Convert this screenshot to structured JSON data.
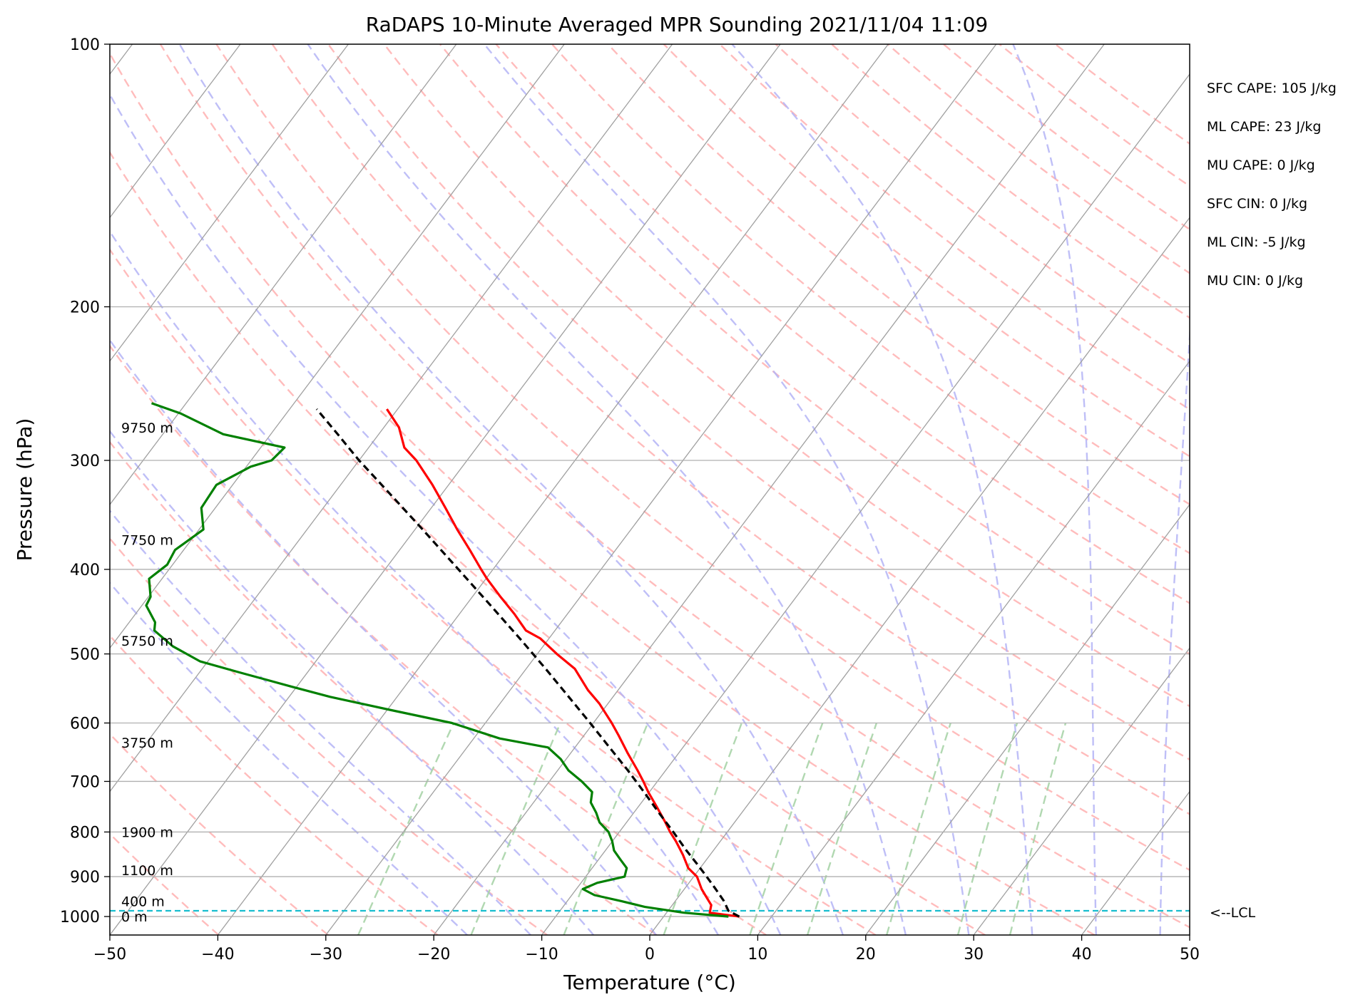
{
  "chart_data": {
    "type": "line",
    "title": "RaDAPS 10-Minute Averaged MPR Sounding 2021/11/04 11:09",
    "xlabel": "Temperature (°C)",
    "ylabel": "Pressure (hPa)",
    "xlim": [
      -50,
      50
    ],
    "ylim": [
      1050,
      100
    ],
    "y_scale": "log",
    "skew": "skew-T log-p",
    "grid": true,
    "x_ticks": [
      "−50",
      "−40",
      "−30",
      "−20",
      "−10",
      "0",
      "10",
      "20",
      "30",
      "40",
      "50"
    ],
    "y_ticks": [
      "100",
      "200",
      "300",
      "400",
      "500",
      "600",
      "700",
      "800",
      "900",
      "1000"
    ],
    "series": [
      {
        "role": "temperature",
        "color": "#ff0000",
        "pressure": [
          1000,
          990,
          970,
          950,
          930,
          900,
          880,
          850,
          820,
          800,
          780,
          750,
          720,
          700,
          680,
          650,
          620,
          600,
          570,
          550,
          520,
          500,
          480,
          470,
          450,
          430,
          410,
          400,
          380,
          360,
          340,
          320,
          300,
          290,
          275,
          262
        ],
        "temp": [
          7,
          4,
          3.6,
          2.6,
          1.6,
          0.3,
          -1.1,
          -2.5,
          -4.1,
          -5.3,
          -6.4,
          -8.2,
          -10.1,
          -11.3,
          -12.6,
          -14.7,
          -16.8,
          -18.3,
          -20.8,
          -22.8,
          -25.5,
          -28.2,
          -30.8,
          -32.7,
          -34.9,
          -37.4,
          -39.9,
          -41.1,
          -43.5,
          -46.1,
          -48.7,
          -51.5,
          -54.7,
          -56.7,
          -58.6,
          -61
        ]
      },
      {
        "role": "dewpoint",
        "color": "#008000",
        "pressure": [
          1000,
          990,
          975,
          960,
          945,
          930,
          915,
          900,
          880,
          860,
          840,
          820,
          800,
          780,
          760,
          740,
          720,
          700,
          680,
          660,
          640,
          625,
          600,
          580,
          560,
          545,
          525,
          510,
          490,
          470,
          460,
          440,
          430,
          410,
          395,
          380,
          360,
          340,
          320,
          305,
          300,
          290,
          280,
          265,
          258
        ],
        "temp": [
          6,
          1.6,
          -2.4,
          -5,
          -7.9,
          -9.4,
          -8.5,
          -6.4,
          -6.8,
          -8,
          -9.2,
          -10,
          -11,
          -12.5,
          -13.5,
          -14.7,
          -15.3,
          -17,
          -19,
          -20.5,
          -22.5,
          -27.6,
          -33.1,
          -39.6,
          -46.2,
          -50.5,
          -56.3,
          -60.7,
          -64.3,
          -67.1,
          -67.6,
          -69.6,
          -69.8,
          -71.2,
          -70.5,
          -70.8,
          -69.6,
          -71.3,
          -71.5,
          -69.6,
          -68.1,
          -67.8,
          -74.4,
          -79.8,
          -83.2
        ]
      },
      {
        "role": "parcel",
        "color": "#000000",
        "pressure": [
          1000,
          985,
          960,
          930,
          900,
          870,
          840,
          800,
          760,
          720,
          680,
          640,
          600,
          560,
          520,
          480,
          440,
          400,
          360,
          320,
          300,
          280,
          262
        ],
        "temp": [
          7,
          5.6,
          4.5,
          2.9,
          1.2,
          -0.6,
          -2.5,
          -5,
          -7.7,
          -10.5,
          -13.5,
          -16.8,
          -20.3,
          -24.1,
          -28.2,
          -32.7,
          -37.7,
          -43.2,
          -49.3,
          -56.2,
          -60,
          -63.8,
          -67.5
        ]
      }
    ],
    "lcl_pressure": 985,
    "lcl_label": "<--LCL",
    "height_labels": [
      {
        "text": "9750 m",
        "pressure": 275
      },
      {
        "text": "7750 m",
        "pressure": 370
      },
      {
        "text": "5750 m",
        "pressure": 483
      },
      {
        "text": "3750 m",
        "pressure": 632
      },
      {
        "text": "1900 m",
        "pressure": 800
      },
      {
        "text": "1100 m",
        "pressure": 885
      },
      {
        "text": "400 m",
        "pressure": 960
      },
      {
        "text": "0 m",
        "pressure": 1000
      }
    ],
    "indices": [
      "SFC CAPE: 105 J/kg",
      "ML CAPE: 23 J/kg",
      "MU CAPE: 0 J/kg",
      "SFC CIN: 0 J/kg",
      "ML CIN: -5 J/kg",
      "MU CIN: 0 J/kg"
    ],
    "colors": {
      "dry_adiabats": "#ffb0b0",
      "moist_adiabats": "#b4b4f6",
      "mixing_ratio": "#a8d4a8",
      "isotherms": "#a0a0a0",
      "isobars": "#b0b0b0",
      "lcl_line": "#17becf"
    }
  }
}
